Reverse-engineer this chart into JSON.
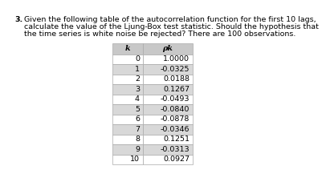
{
  "question_number": "3.",
  "line1": "Given the following table of the autocorrelation function for the first 10 lags,",
  "line2": "calculate the value of the Ljung‐Box test statistic. Should the hypothesis that",
  "line3": "the time series is white noise be rejected? There are 100 observations.",
  "col_k": "k",
  "col_rho": "ρk",
  "rows": [
    [
      "0",
      "1.0000"
    ],
    [
      "1",
      "-0.0325"
    ],
    [
      "2",
      "0.0188"
    ],
    [
      "3",
      "0.1267"
    ],
    [
      "4",
      "-0.0493"
    ],
    [
      "5",
      "-0.0840"
    ],
    [
      "6",
      "-0.0878"
    ],
    [
      "7",
      "-0.0346"
    ],
    [
      "8",
      "0.1251"
    ],
    [
      "9",
      "-0.0313"
    ],
    [
      "10",
      "0.0927"
    ]
  ],
  "bg_color": "#ffffff",
  "text_color": "#000000",
  "header_bg": "#c8c8c8",
  "row_bg_light": "#ffffff",
  "row_bg_dark": "#d8d8d8",
  "table_line_color": "#aaaaaa",
  "font_size_q": 6.8,
  "font_size_table": 6.8
}
